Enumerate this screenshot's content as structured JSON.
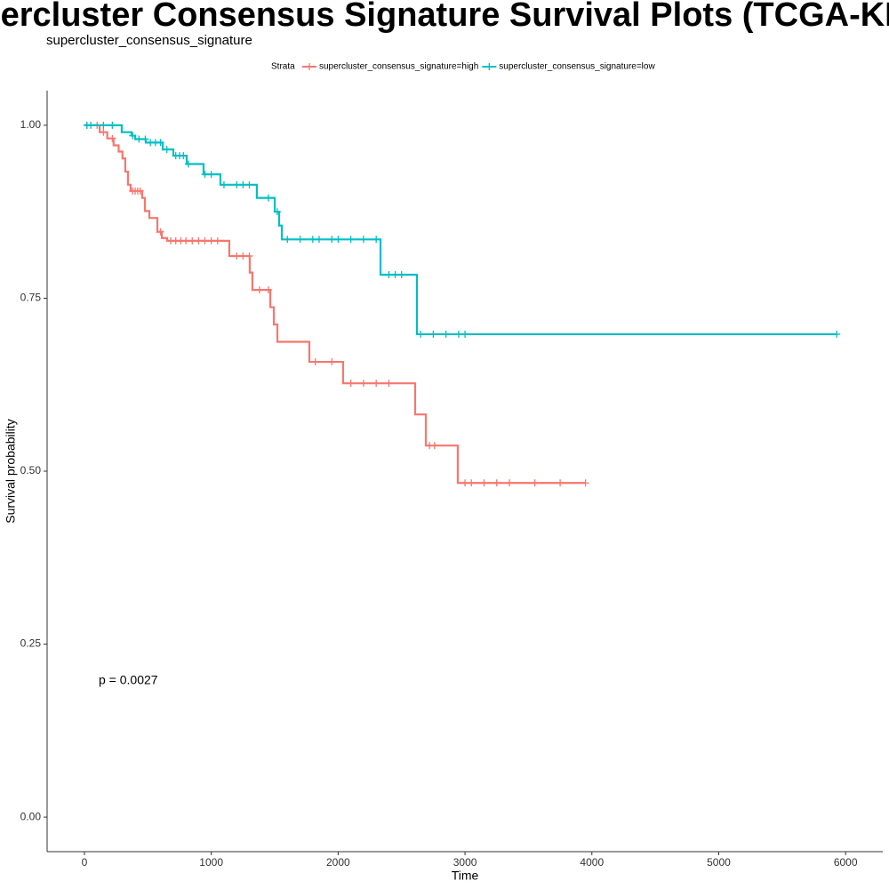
{
  "chart_data": {
    "type": "survival",
    "title": "Supercluster Consensus Signature Survival Plots (TCGA-KIRP)",
    "subtitle": "supercluster_consensus_signature",
    "legend_title": "Strata",
    "legend_position": "top",
    "x_label": "Time",
    "y_label": "Survival probability",
    "annotation": "p = 0.0027",
    "xlim": [
      -294,
      6293
    ],
    "ylim": [
      -0.05,
      1.05
    ],
    "xticks": [
      0,
      1000,
      2000,
      3000,
      4000,
      5000,
      6000
    ],
    "yticks": [
      {
        "value": 0,
        "label": "0.00"
      },
      {
        "value": 0.25,
        "label": "0.25"
      },
      {
        "value": 0.5,
        "label": "0.50"
      },
      {
        "value": 0.75,
        "label": "0.75"
      },
      {
        "value": 1,
        "label": "1.00"
      }
    ],
    "series": [
      {
        "name": "supercluster_consensus_signature=high",
        "color": "#F8766D",
        "x": [
          0,
          120,
          180,
          230,
          270,
          300,
          322,
          343,
          364,
          455,
          477,
          512,
          575,
          610,
          652,
          1142,
          1303,
          1324,
          1465,
          1493,
          1521,
          1773,
          2039,
          2607,
          2691,
          2943,
          3952
        ],
        "values": [
          1.0,
          0.99,
          0.981,
          0.971,
          0.962,
          0.952,
          0.933,
          0.914,
          0.905,
          0.895,
          0.876,
          0.866,
          0.846,
          0.837,
          0.833,
          0.811,
          0.787,
          0.762,
          0.737,
          0.712,
          0.687,
          0.658,
          0.627,
          0.582,
          0.537,
          0.483,
          0.483
        ],
        "censor_x": [
          20,
          100,
          150,
          220,
          380,
          400,
          420,
          440,
          600,
          680,
          720,
          760,
          800,
          850,
          900,
          950,
          1000,
          1050,
          1200,
          1250,
          1300,
          1380,
          1450,
          1820,
          1950,
          2100,
          2200,
          2300,
          2400,
          2720,
          2760,
          3000,
          3050,
          3150,
          3250,
          3350,
          3550,
          3750,
          3950
        ]
      },
      {
        "name": "supercluster_consensus_signature=low",
        "color": "#00BFC4",
        "x": [
          0,
          294,
          371,
          400,
          484,
          617,
          701,
          806,
          939,
          1072,
          1359,
          1500,
          1535,
          1556,
          2334,
          2621,
          5930
        ],
        "values": [
          1.0,
          0.99,
          0.985,
          0.98,
          0.975,
          0.965,
          0.956,
          0.944,
          0.929,
          0.914,
          0.895,
          0.875,
          0.855,
          0.835,
          0.784,
          0.698,
          0.698
        ],
        "censor_x": [
          20,
          50,
          150,
          220,
          380,
          430,
          480,
          520,
          560,
          600,
          650,
          720,
          750,
          780,
          820,
          950,
          1000,
          1100,
          1200,
          1250,
          1300,
          1450,
          1520,
          1600,
          1700,
          1800,
          1850,
          1950,
          2000,
          2100,
          2200,
          2300,
          2400,
          2450,
          2500,
          2650,
          2750,
          2850,
          2950,
          3000,
          5930
        ]
      }
    ]
  }
}
